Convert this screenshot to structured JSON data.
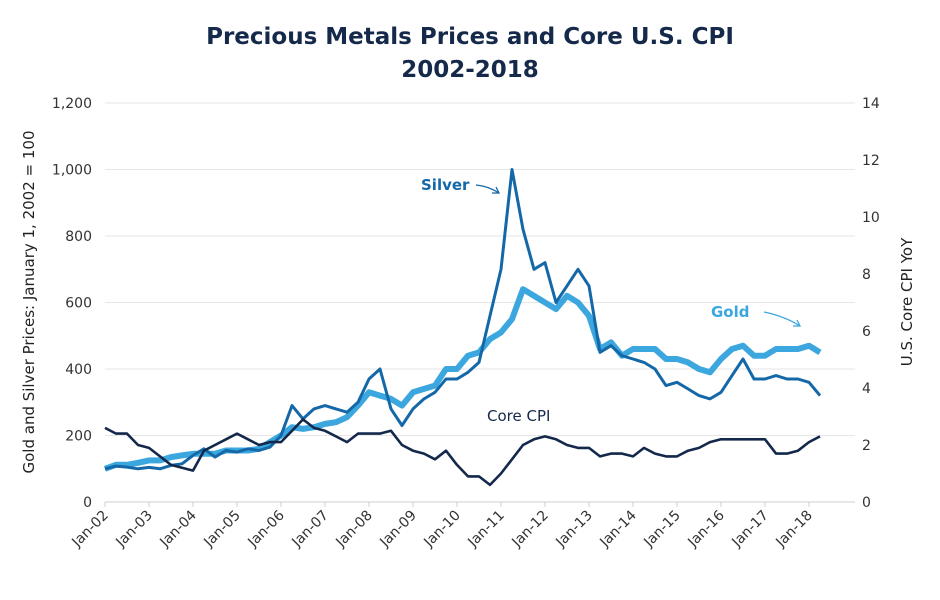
{
  "chart_data": {
    "type": "line",
    "title": "Precious Metals Prices and Core U.S. CPI",
    "subtitle": "2002-2018",
    "ylabel": "Gold and Silver Prices: January 1, 2002 = 100",
    "y2label": "U.S. Core CPI YoY",
    "ylim": [
      0,
      1200
    ],
    "y2lim": [
      0,
      14
    ],
    "yticks": [
      "0",
      "200",
      "400",
      "600",
      "800",
      "1,000",
      "1,200"
    ],
    "y2ticks": [
      "0",
      "2",
      "4",
      "6",
      "8",
      "10",
      "12",
      "14"
    ],
    "xticks": [
      "Jan-02",
      "Jan-03",
      "Jan-04",
      "Jan-05",
      "Jan-06",
      "Jan-07",
      "Jan-08",
      "Jan-09",
      "Jan-10",
      "Jan-11",
      "Jan-12",
      "Jan-13",
      "Jan-14",
      "Jan-15",
      "Jan-16",
      "Jan-17",
      "Jan-18"
    ],
    "grid": true,
    "x_start": "2002-01",
    "x_step_months": 3,
    "series": [
      {
        "name": "Silver",
        "axis": "left",
        "color": "#1468a8",
        "values": [
          100,
          108,
          105,
          100,
          104,
          100,
          110,
          115,
          140,
          160,
          135,
          155,
          150,
          160,
          155,
          165,
          200,
          290,
          250,
          280,
          290,
          280,
          270,
          300,
          370,
          400,
          280,
          230,
          280,
          310,
          330,
          370,
          370,
          390,
          420,
          560,
          700,
          1000,
          820,
          700,
          720,
          600,
          650,
          700,
          650,
          450,
          470,
          440,
          430,
          420,
          400,
          350,
          360,
          340,
          320,
          310,
          330,
          380,
          430,
          370,
          370,
          380,
          370,
          370,
          360,
          320
        ]
      },
      {
        "name": "Gold",
        "axis": "left",
        "color": "#3ba7de",
        "values": [
          100,
          112,
          112,
          118,
          125,
          125,
          135,
          140,
          145,
          145,
          145,
          155,
          155,
          155,
          160,
          180,
          200,
          225,
          220,
          225,
          235,
          240,
          255,
          290,
          330,
          320,
          310,
          290,
          330,
          340,
          350,
          400,
          400,
          440,
          450,
          490,
          510,
          550,
          640,
          620,
          600,
          580,
          620,
          600,
          560,
          460,
          480,
          440,
          460,
          460,
          460,
          430,
          430,
          420,
          400,
          390,
          430,
          460,
          470,
          440,
          440,
          460,
          460,
          460,
          470,
          450
        ]
      },
      {
        "name": "Core CPI",
        "axis": "right",
        "color": "#14284b",
        "values": [
          2.6,
          2.4,
          2.4,
          2.0,
          1.9,
          1.6,
          1.3,
          1.2,
          1.1,
          1.8,
          2.0,
          2.2,
          2.4,
          2.2,
          2.0,
          2.1,
          2.1,
          2.5,
          2.9,
          2.6,
          2.5,
          2.3,
          2.1,
          2.4,
          2.4,
          2.4,
          2.5,
          2.0,
          1.8,
          1.7,
          1.5,
          1.8,
          1.3,
          0.9,
          0.9,
          0.6,
          1.0,
          1.5,
          2.0,
          2.2,
          2.3,
          2.2,
          2.0,
          1.9,
          1.9,
          1.6,
          1.7,
          1.7,
          1.6,
          1.9,
          1.7,
          1.6,
          1.6,
          1.8,
          1.9,
          2.1,
          2.2,
          2.2,
          2.2,
          2.2,
          2.2,
          1.7,
          1.7,
          1.8,
          2.1,
          2.3
        ]
      }
    ],
    "annotations": [
      "Silver",
      "Gold",
      "Core CPI"
    ]
  }
}
